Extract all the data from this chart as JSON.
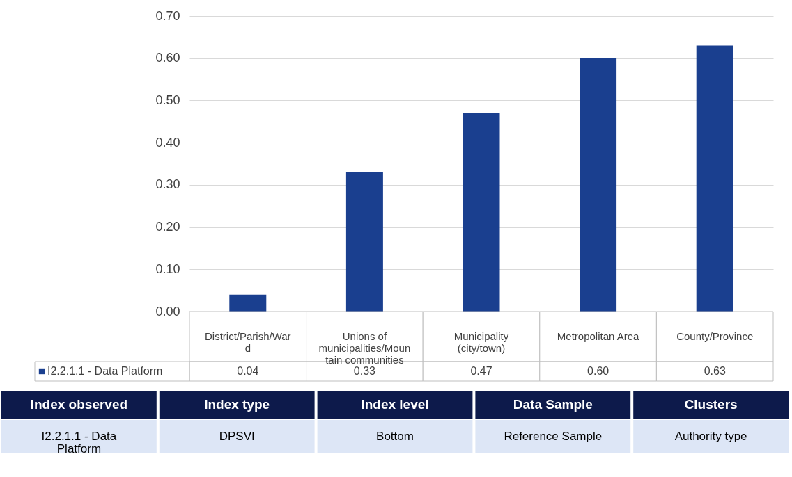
{
  "chart_data": {
    "type": "bar",
    "categories": [
      "District/Parish/Ward",
      "Unions of municipalities/Mountain communities",
      "Municipality (city/town)",
      "Metropolitan Area",
      "County/Province"
    ],
    "series": [
      {
        "name": "I2.2.1.1 - Data Platform",
        "color": "#1a3f8f",
        "values": [
          0.04,
          0.33,
          0.47,
          0.6,
          0.63
        ]
      }
    ],
    "ylim": [
      0,
      0.7
    ],
    "yticks": [
      {
        "value": 0,
        "label": "0.00"
      },
      {
        "value": 0.1,
        "label": "0.10"
      },
      {
        "value": 0.2,
        "label": "0.20"
      },
      {
        "value": 0.3,
        "label": "0.30"
      },
      {
        "value": 0.4,
        "label": "0.40"
      },
      {
        "value": 0.5,
        "label": "0.50"
      },
      {
        "value": 0.6,
        "label": "0.60"
      },
      {
        "value": 0.7,
        "label": "0.70"
      }
    ],
    "grid": "y",
    "value_labels": [
      "0.04",
      "0.33",
      "0.47",
      "0.60",
      "0.63"
    ],
    "legend": "bottom",
    "annotations": [
      "Index observed",
      "Index type",
      "Index level",
      "Data Sample",
      "Clusters",
      "I2.2.1.1 - Data Platform",
      "DPSVI",
      "Bottom",
      "Reference Sample",
      "Authority type"
    ]
  }
}
